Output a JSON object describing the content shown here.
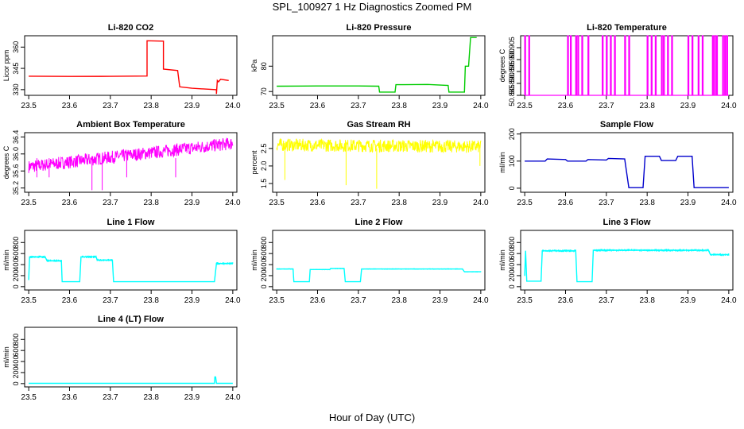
{
  "page": {
    "title": "SPL_100927  1 Hz Diagnostics Zoomed PM",
    "xlabel": "Hour of Day (UTC)"
  },
  "chart_data": [
    {
      "id": "co2",
      "type": "line",
      "title": "Li-820 CO2",
      "ylabel": "Licor ppm",
      "color": "#ff0000",
      "xlim": [
        23.49,
        24.01
      ],
      "ylim": [
        326,
        368
      ],
      "x_ticks": [
        "23.5",
        "23.6",
        "23.7",
        "23.8",
        "23.9",
        "24.0"
      ],
      "y_ticks": [
        "330",
        "345",
        "360"
      ],
      "series": [
        {
          "x": [
            23.5,
            23.6,
            23.7,
            23.79,
            23.79,
            23.83,
            23.83,
            23.865,
            23.87,
            23.9,
            23.96,
            23.96,
            23.962,
            23.965,
            23.97,
            23.99
          ],
          "y": [
            339.5,
            339.3,
            339.4,
            339.6,
            364.5,
            364.2,
            344.5,
            343.5,
            332.0,
            331.0,
            330.0,
            327.0,
            336.5,
            335.5,
            337.3,
            336.5
          ]
        }
      ]
    },
    {
      "id": "pressure",
      "type": "line",
      "title": "Li-820 Pressure",
      "ylabel": "kPa",
      "color": "#00cc00",
      "xlim": [
        23.49,
        24.01
      ],
      "ylim": [
        68.5,
        92
      ],
      "x_ticks": [
        "23.5",
        "23.6",
        "23.7",
        "23.8",
        "23.9",
        "24.0"
      ],
      "y_ticks": [
        "70",
        "80"
      ],
      "series": [
        {
          "x": [
            23.5,
            23.6,
            23.7,
            23.75,
            23.752,
            23.79,
            23.792,
            23.87,
            23.92,
            23.922,
            23.96,
            23.962,
            23.97,
            23.975,
            23.99
          ],
          "y": [
            72.1,
            72.2,
            72.2,
            72.1,
            69.8,
            69.8,
            72.7,
            72.8,
            72.4,
            69.8,
            69.8,
            80.0,
            80.0,
            91.3,
            91.3
          ]
        }
      ]
    },
    {
      "id": "licor_temp",
      "type": "line",
      "title": "Li-820 Temperature",
      "ylabel": "degrees C",
      "color": "#ff00ff",
      "xlim": [
        23.49,
        24.01
      ],
      "ylim": [
        50.885,
        50.91
      ],
      "x_ticks": [
        "23.5",
        "23.6",
        "23.7",
        "23.8",
        "23.9",
        "24.0"
      ],
      "y_ticks": [
        "50.885",
        "50.890",
        "50.895",
        "50.900",
        "50.905"
      ],
      "series": [
        {
          "x": [
            23.5,
            23.51,
            23.605,
            23.612,
            23.625,
            23.63,
            23.64,
            23.655,
            23.69,
            23.7,
            23.71,
            23.72,
            23.745,
            23.755,
            23.8,
            23.81,
            23.82,
            23.835,
            23.84,
            23.85,
            23.86,
            23.9,
            23.91,
            23.925,
            23.935,
            23.96,
            23.965,
            23.97,
            23.985,
            23.99,
            23.995
          ],
          "y_high": 50.91,
          "y_low": 50.885
        }
      ]
    },
    {
      "id": "box_temp",
      "type": "line",
      "title": "Ambient Box Temperature",
      "ylabel": "degrees C",
      "color": "#ff00ff",
      "xlim": [
        23.49,
        24.01
      ],
      "ylim": [
        35.1,
        36.5
      ],
      "x_ticks": [
        "23.5",
        "23.6",
        "23.7",
        "23.8",
        "23.9",
        "24.0"
      ],
      "y_ticks": [
        "35.2",
        "35.6",
        "36.0",
        "36.4"
      ],
      "series": [
        {
          "x": [
            23.5,
            24.0
          ],
          "y": [
            35.7,
            36.25
          ],
          "noise": 0.15
        }
      ]
    },
    {
      "id": "rh",
      "type": "line",
      "title": "Gas Stream RH",
      "ylabel": "percent",
      "color": "#ffff00",
      "xlim": [
        23.49,
        24.01
      ],
      "ylim": [
        1.25,
        2.95
      ],
      "x_ticks": [
        "23.5",
        "23.6",
        "23.7",
        "23.8",
        "23.9",
        "24.0"
      ],
      "y_ticks": [
        "1.5",
        "2.0",
        "2.5"
      ],
      "series": [
        {
          "x": [
            23.5,
            24.0
          ],
          "y": [
            2.6,
            2.55
          ],
          "noise": 0.18,
          "spikes": [
            {
              "x": 23.52,
              "y": 1.6
            },
            {
              "x": 23.67,
              "y": 1.45
            },
            {
              "x": 23.745,
              "y": 1.35
            },
            {
              "x": 23.998,
              "y": 2.0
            }
          ]
        }
      ]
    },
    {
      "id": "sample_flow",
      "type": "line",
      "title": "Sample Flow",
      "ylabel": "ml/min",
      "color": "#0000cc",
      "xlim": [
        23.49,
        24.01
      ],
      "ylim": [
        -15,
        205
      ],
      "x_ticks": [
        "23.5",
        "23.6",
        "23.7",
        "23.8",
        "23.9",
        "24.0"
      ],
      "y_ticks": [
        "0",
        "100",
        "200"
      ],
      "series": [
        {
          "x": [
            23.5,
            23.55,
            23.555,
            23.6,
            23.605,
            23.65,
            23.655,
            23.7,
            23.705,
            23.745,
            23.755,
            23.79,
            23.795,
            23.83,
            23.835,
            23.87,
            23.875,
            23.91,
            23.915,
            24.0
          ],
          "y": [
            100,
            100,
            108,
            106,
            100,
            100,
            106,
            104,
            110,
            108,
            2,
            2,
            118,
            118,
            102,
            102,
            118,
            118,
            2,
            2
          ]
        }
      ]
    },
    {
      "id": "line1",
      "type": "line",
      "title": "Line 1 Flow",
      "ylabel": "ml/min",
      "color": "#00ffff",
      "xlim": [
        23.49,
        24.01
      ],
      "ylim": [
        -60,
        1020
      ],
      "x_ticks": [
        "23.5",
        "23.6",
        "23.7",
        "23.8",
        "23.9",
        "24.0"
      ],
      "y_ticks": [
        "0",
        "200",
        "400",
        "600",
        "800"
      ],
      "series": [
        {
          "x": [
            23.5,
            23.502,
            23.54,
            23.545,
            23.58,
            23.582,
            23.625,
            23.628,
            23.665,
            23.668,
            23.705,
            23.708,
            23.955,
            23.96,
            24.0
          ],
          "y": [
            120,
            540,
            540,
            470,
            470,
            90,
            90,
            540,
            540,
            480,
            480,
            90,
            90,
            420,
            420
          ],
          "noise": 25
        }
      ]
    },
    {
      "id": "line2",
      "type": "line",
      "title": "Line 2 Flow",
      "ylabel": "ml/min",
      "color": "#00ffff",
      "xlim": [
        23.49,
        24.01
      ],
      "ylim": [
        -60,
        1020
      ],
      "x_ticks": [
        "23.5",
        "23.6",
        "23.7",
        "23.8",
        "23.9",
        "24.0"
      ],
      "y_ticks": [
        "0",
        "200",
        "400",
        "600",
        "800"
      ],
      "series": [
        {
          "x": [
            23.5,
            23.54,
            23.542,
            23.58,
            23.582,
            23.63,
            23.632,
            23.665,
            23.668,
            23.705,
            23.708,
            23.955,
            23.96,
            24.0
          ],
          "y": [
            320,
            320,
            90,
            90,
            310,
            310,
            330,
            330,
            90,
            90,
            320,
            320,
            270,
            270
          ],
          "noise": 12
        }
      ]
    },
    {
      "id": "line3",
      "type": "line",
      "title": "Line 3 Flow",
      "ylabel": "ml/min",
      "color": "#00ffff",
      "xlim": [
        23.49,
        24.01
      ],
      "ylim": [
        -60,
        1020
      ],
      "x_ticks": [
        "23.5",
        "23.6",
        "23.7",
        "23.8",
        "23.9",
        "24.0"
      ],
      "y_ticks": [
        "0",
        "200",
        "400",
        "600",
        "800"
      ],
      "series": [
        {
          "x": [
            23.5,
            23.502,
            23.505,
            23.54,
            23.543,
            23.625,
            23.628,
            23.665,
            23.668,
            23.95,
            23.955,
            24.0
          ],
          "y": [
            200,
            650,
            100,
            100,
            650,
            650,
            90,
            90,
            660,
            660,
            580,
            580
          ],
          "noise": 25
        }
      ]
    },
    {
      "id": "line4",
      "type": "line",
      "title": "Line 4 (LT) Flow",
      "ylabel": "ml/min",
      "color": "#00ffff",
      "xlim": [
        23.49,
        24.01
      ],
      "ylim": [
        -60,
        1020
      ],
      "x_ticks": [
        "23.5",
        "23.6",
        "23.7",
        "23.8",
        "23.9",
        "24.0"
      ],
      "y_ticks": [
        "0",
        "200",
        "400",
        "600",
        "800"
      ],
      "series": [
        {
          "x": [
            23.5,
            23.955,
            23.956,
            23.958,
            23.96,
            24.0
          ],
          "y": [
            5,
            5,
            120,
            120,
            5,
            5
          ]
        }
      ]
    }
  ]
}
